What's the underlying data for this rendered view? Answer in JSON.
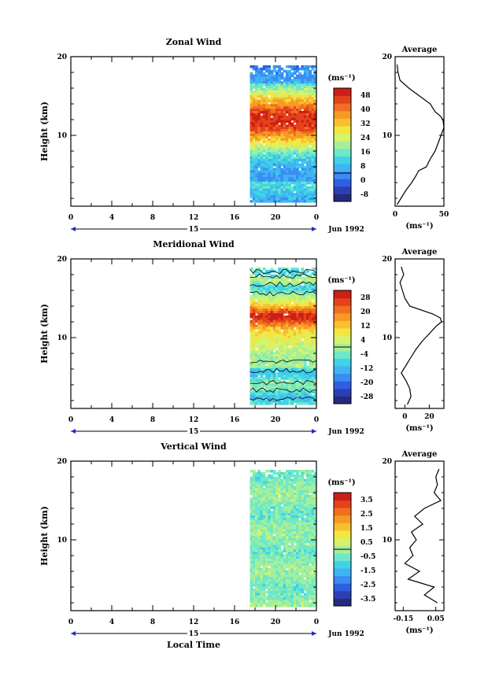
{
  "chart_data": [
    {
      "type": "heatmap",
      "title": "Zonal Wind",
      "ylabel": "Height (km)",
      "xlabel": "",
      "x_ticks": [
        "0",
        "4",
        "8",
        "12",
        "16",
        "20",
        "0"
      ],
      "y_ticks": [
        "10",
        "20"
      ],
      "ylim": [
        1,
        20
      ],
      "xlim": [
        0,
        24
      ],
      "date_label": "15",
      "month_label": "Jun 1992",
      "data_x_range": [
        17.5,
        24
      ],
      "data_y_range": [
        1.5,
        18.9
      ],
      "colorbar_unit": "(ms⁻¹)",
      "colorbar_ticks": [
        "48",
        "40",
        "32",
        "24",
        "16",
        "8",
        "0",
        "-8"
      ],
      "colorbar_range": [
        -12,
        52
      ],
      "profile": {
        "title": "Average",
        "xlabel": "(ms⁻¹)",
        "x_ticks": [
          "0",
          "50"
        ],
        "xlim": [
          0,
          50
        ],
        "y_ticks": [
          "10",
          "20"
        ],
        "heights": [
          1.2,
          2,
          3,
          4,
          5,
          5.5,
          6,
          7,
          8,
          9,
          10,
          11,
          12,
          12.5,
          13,
          14,
          15,
          16,
          17,
          18,
          19
        ],
        "values": [
          2,
          6,
          11,
          17,
          22,
          24,
          32,
          36,
          41,
          44,
          47,
          50,
          49,
          46,
          41,
          36,
          25,
          14,
          5,
          3,
          2
        ]
      }
    },
    {
      "type": "heatmap",
      "title": "Meridional Wind",
      "ylabel": "Height (km)",
      "xlabel": "",
      "x_ticks": [
        "0",
        "4",
        "8",
        "12",
        "16",
        "20",
        "0"
      ],
      "y_ticks": [
        "10",
        "20"
      ],
      "ylim": [
        1,
        20
      ],
      "xlim": [
        0,
        24
      ],
      "date_label": "15",
      "month_label": "Jun 1992",
      "data_x_range": [
        17.5,
        24
      ],
      "data_y_range": [
        1.5,
        18.9
      ],
      "colorbar_unit": "(ms⁻¹)",
      "colorbar_ticks": [
        "28",
        "20",
        "12",
        "4",
        "-4",
        "-12",
        "-20",
        "-28"
      ],
      "colorbar_range": [
        -32,
        32
      ],
      "profile": {
        "title": "Average",
        "xlabel": "(ms⁻¹)",
        "x_ticks": [
          "0",
          "20"
        ],
        "xlim": [
          -8,
          32
        ],
        "y_ticks": [
          "10",
          "20"
        ],
        "heights": [
          1.5,
          2.5,
          3.5,
          4.5,
          5.5,
          6.5,
          7.5,
          8.5,
          9.5,
          10.5,
          11.5,
          12,
          12.5,
          13,
          14,
          15,
          16,
          17,
          18,
          19
        ],
        "values": [
          2,
          5,
          4,
          1,
          -3,
          1,
          5,
          9,
          14,
          20,
          26,
          30,
          29,
          23,
          4,
          0,
          -2,
          -4,
          -1,
          -3
        ]
      }
    },
    {
      "type": "heatmap",
      "title": "Vertical Wind",
      "ylabel": "Height (km)",
      "xlabel": "Local Time",
      "x_ticks": [
        "0",
        "4",
        "8",
        "12",
        "16",
        "20",
        "0"
      ],
      "y_ticks": [
        "10",
        "20"
      ],
      "ylim": [
        1,
        20
      ],
      "xlim": [
        0,
        24
      ],
      "date_label": "15",
      "month_label": "Jun 1992",
      "data_x_range": [
        17.5,
        24
      ],
      "data_y_range": [
        1.5,
        18.9
      ],
      "colorbar_unit": "(ms⁻¹)",
      "colorbar_ticks": [
        "3.5",
        "2.5",
        "1.5",
        "0.5",
        "-0.5",
        "-1.5",
        "-2.5",
        "-3.5"
      ],
      "colorbar_range": [
        -4,
        4
      ],
      "profile": {
        "title": "Average",
        "xlabel": "(ms⁻¹)",
        "x_ticks": [
          "-0.15",
          "0.05"
        ],
        "xlim": [
          -0.2,
          0.1
        ],
        "y_ticks": [
          "10",
          "20"
        ],
        "heights": [
          2,
          3,
          4,
          5,
          6,
          7,
          8,
          9,
          10,
          11,
          12,
          13,
          14,
          15,
          16,
          17,
          18,
          19
        ],
        "values": [
          0.06,
          -0.02,
          0.04,
          -0.12,
          -0.05,
          -0.14,
          -0.09,
          -0.11,
          -0.07,
          -0.1,
          -0.03,
          -0.08,
          -0.02,
          0.08,
          0.04,
          0.06,
          0.05,
          0.07
        ]
      }
    }
  ]
}
